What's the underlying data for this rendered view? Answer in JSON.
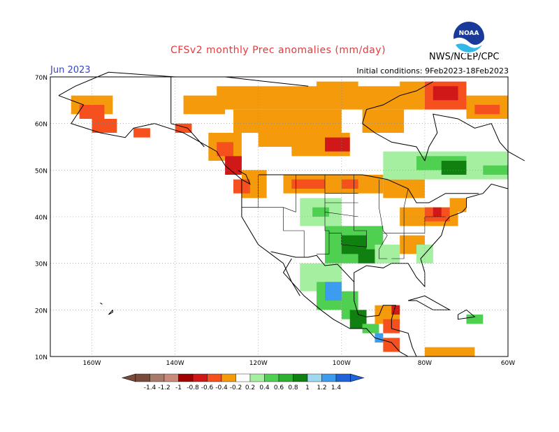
{
  "header": {
    "title": "CFSv2 monthly Prec anomalies (mm/day)",
    "month": "Jun 2023",
    "initial_conditions": "Initial conditions: 9Feb2023-18Feb2023",
    "agency": "NWS/NCEP/CPC",
    "logo_text": "NOAA"
  },
  "map": {
    "lat_labels": [
      "70N",
      "60N",
      "50N",
      "40N",
      "30N",
      "20N",
      "10N"
    ],
    "lon_labels": [
      "160W",
      "140W",
      "120W",
      "100W",
      "80W",
      "60W"
    ]
  },
  "legend": {
    "labels": [
      "-1.4",
      "-1.2",
      "-1",
      "-0.8",
      "-0.6",
      "-0.4",
      "-0.2",
      "0.2",
      "0.4",
      "0.6",
      "0.8",
      "1",
      "1.2",
      "1.4"
    ],
    "colors": [
      "#7a4a3a",
      "#a97a6a",
      "#c98a7a",
      "#a00000",
      "#d01818",
      "#f5501e",
      "#f59a0a",
      "#ffffff",
      "#a4f0a0",
      "#50d050",
      "#30b030",
      "#108010",
      "#a0d8f0",
      "#3c9cf0",
      "#1e64d8"
    ]
  },
  "colors": {
    "drought_orange": "#f59a0a",
    "dry_red_orange": "#f5501e",
    "dry_red": "#d01818",
    "wet_light_green": "#a4f0a0",
    "wet_green": "#50d050",
    "wet_dark_green": "#108010",
    "wet_blue": "#3c9cf0"
  }
}
